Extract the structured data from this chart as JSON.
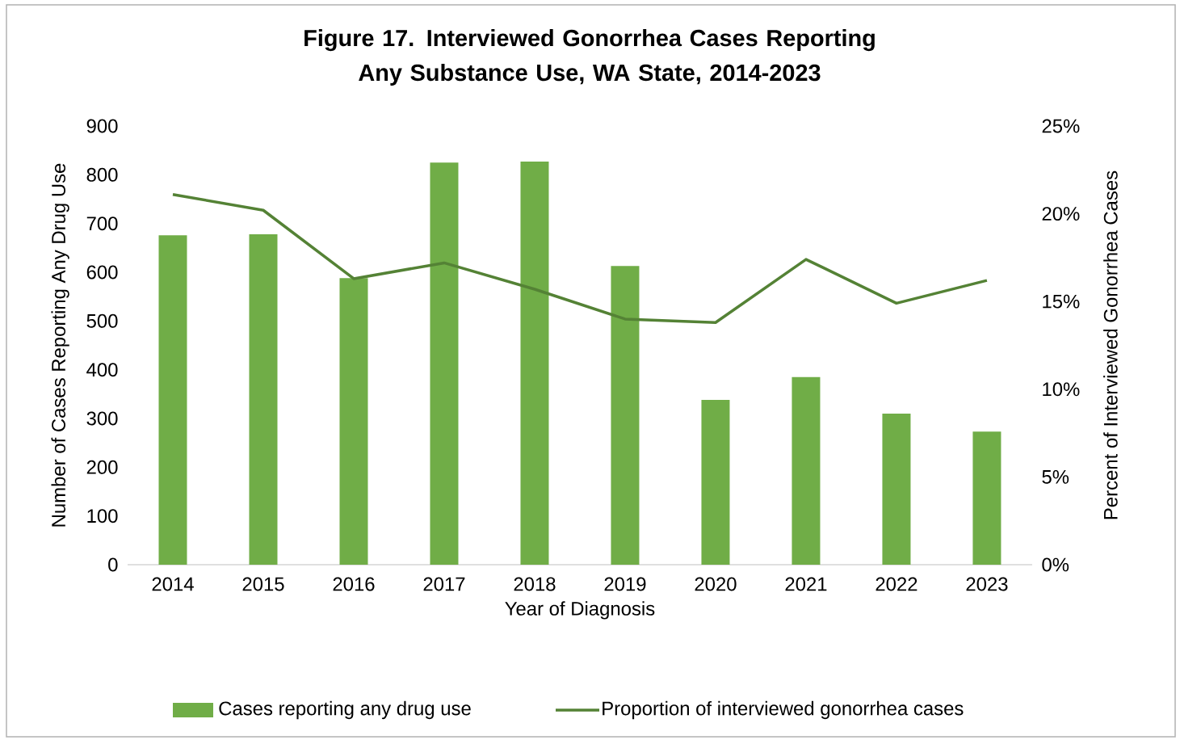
{
  "chart_data": {
    "type": "bar",
    "title": "Figure 17. Interviewed Gonorrhea Cases Reporting Any Substance Use, WA State, 2014-2023",
    "categories": [
      "2014",
      "2015",
      "2016",
      "2017",
      "2018",
      "2019",
      "2020",
      "2021",
      "2022",
      "2023"
    ],
    "series": [
      {
        "name": "Cases reporting any drug use",
        "color": "#70ad47",
        "values": [
          676,
          678,
          588,
          825,
          827,
          613,
          338,
          385,
          310,
          273
        ]
      },
      {
        "name": "Proportion of interviewed gonorrhea cases",
        "type": "line",
        "axis": "y2",
        "color": "#548235",
        "values": [
          21.1,
          20.2,
          16.3,
          17.2,
          15.7,
          14.0,
          13.8,
          17.4,
          14.9,
          16.2
        ]
      }
    ],
    "xlabel": "Year of Diagnosis",
    "ylabel": "Number of Cases Reporting Any Drug Use",
    "y2label": "Percent of Interviewed Gonorrhea Cases",
    "ylim": [
      0,
      900
    ],
    "yticks": [
      0,
      100,
      200,
      300,
      400,
      500,
      600,
      700,
      800,
      900
    ],
    "y2lim": [
      0,
      25
    ],
    "y2ticks": [
      {
        "value": 0,
        "label": "0%"
      },
      {
        "value": 5,
        "label": "5%"
      },
      {
        "value": 10,
        "label": "10%"
      },
      {
        "value": 15,
        "label": "15%"
      },
      {
        "value": 20,
        "label": "20%"
      },
      {
        "value": 25,
        "label": "25%"
      }
    ],
    "legend": "bottom"
  }
}
